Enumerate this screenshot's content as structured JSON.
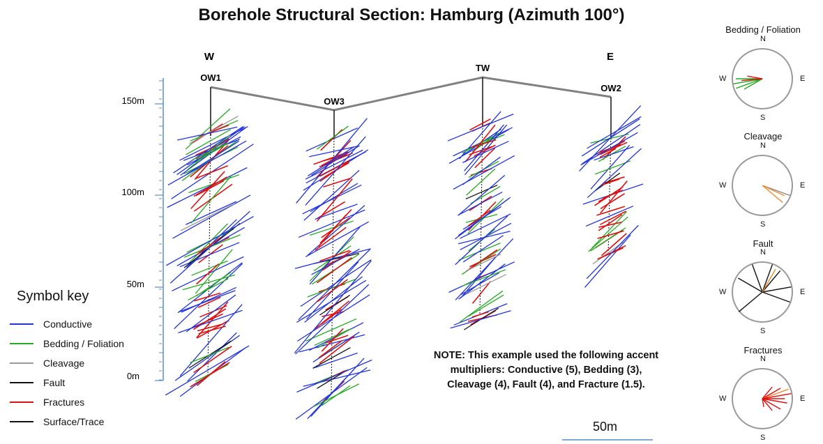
{
  "title": "Borehole Structural Section: Hamburg (Azimuth 100°)",
  "direction_labels": {
    "west": "W",
    "east": "E"
  },
  "depth_axis": {
    "ticks": [
      "150m",
      "100m",
      "50m",
      "0m"
    ]
  },
  "boreholes": [
    {
      "name": "OW1"
    },
    {
      "name": "OW3"
    },
    {
      "name": "TW"
    },
    {
      "name": "OW2"
    }
  ],
  "symbol_key": {
    "title": "Symbol key",
    "items": [
      {
        "label": "Conductive",
        "color": "#2233dd"
      },
      {
        "label": "Bedding / Foliation",
        "color": "#22aa22"
      },
      {
        "label": "Cleavage",
        "color": "#999999"
      },
      {
        "label": "Fault",
        "color": "#111111"
      },
      {
        "label": "Fractures",
        "color": "#dd1111"
      },
      {
        "label": "Surface/Trace",
        "color": "#111111"
      }
    ]
  },
  "note": "NOTE: This example used the following accent multipliers: Conductive (5), Bedding (3), Cleavage (4), Fault (4), and Fracture (1.5).",
  "scale_bar": {
    "label": "50m"
  },
  "roses": [
    {
      "title": "Bedding / Foliation",
      "n": "N",
      "e": "E",
      "s": "S",
      "w": "W"
    },
    {
      "title": "Cleavage",
      "n": "N",
      "e": "E",
      "s": "S",
      "w": "W"
    },
    {
      "title": "Fault",
      "n": "N",
      "e": "E",
      "s": "S",
      "w": "W"
    },
    {
      "title": "Fractures",
      "n": "N",
      "e": "E",
      "s": "S",
      "w": "W"
    }
  ]
}
